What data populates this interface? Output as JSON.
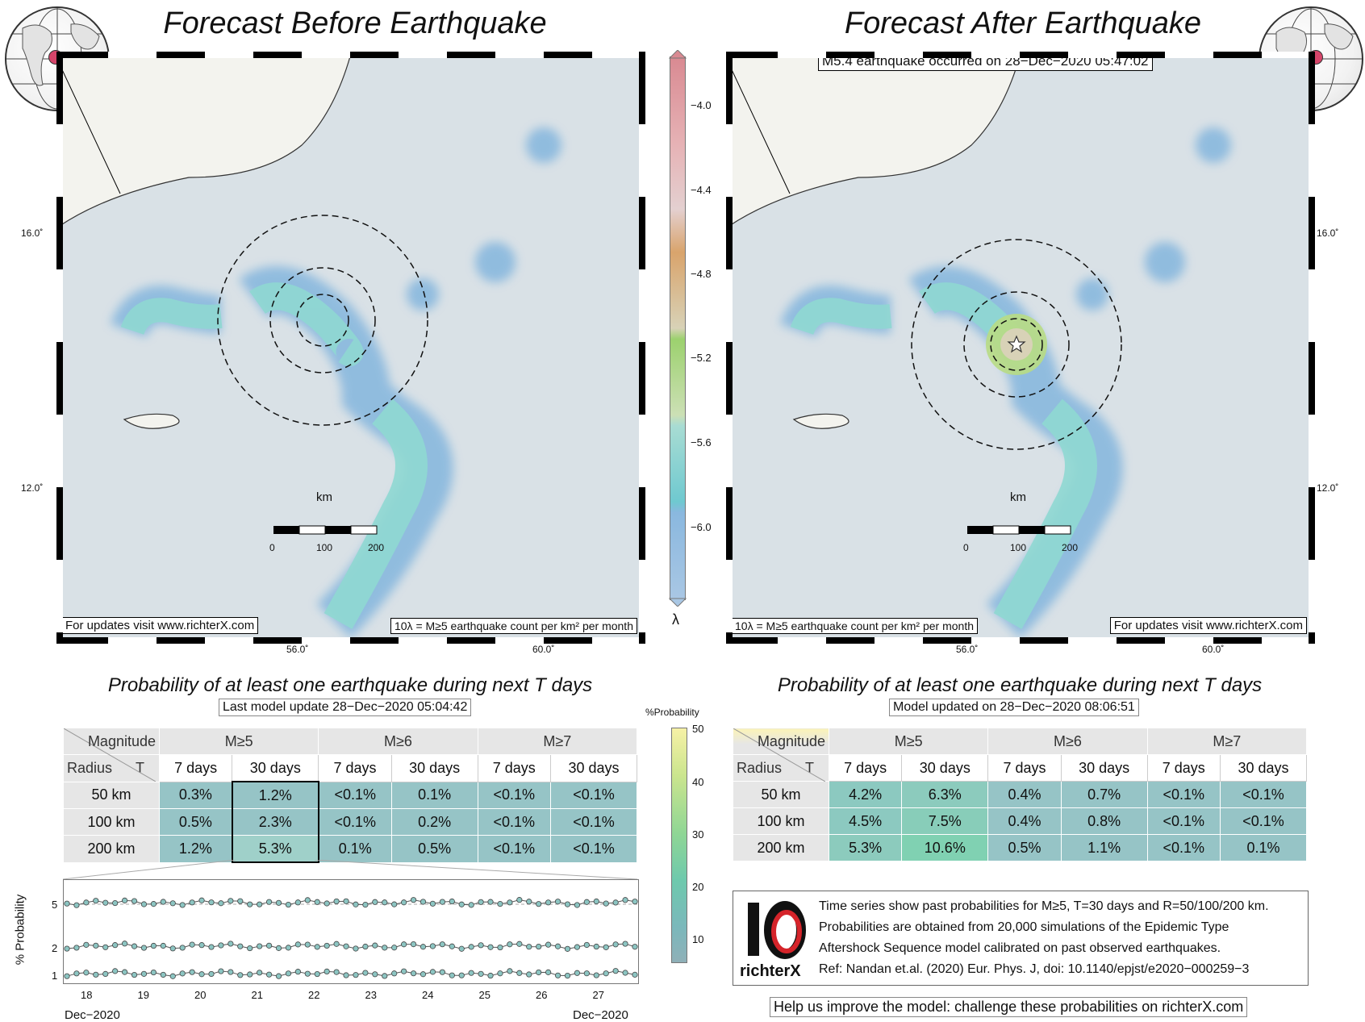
{
  "left": {
    "title": "Forecast Before Earthquake",
    "note_url": "For updates visit www.richterX.com",
    "note_unit": "10λ = M≥5 earthquake count per km² per month",
    "km_label": "km",
    "scale_ticks": [
      "0",
      "100",
      "200"
    ],
    "lat_ticks": [
      "16.0˚",
      "12.0˚"
    ],
    "lon_ticks": [
      "56.0˚",
      "60.0˚"
    ],
    "subtitle": "Probability of at least one earthquake during next T days",
    "update": "Last model update 28−Dec−2020 05:04:42",
    "table": {
      "magnitude_label": "Magnitude",
      "radius_label": "Radius",
      "t_label": "T",
      "mags": [
        "M≥5",
        "M≥6",
        "M≥7"
      ],
      "periods": [
        "7 days",
        "30 days",
        "7 days",
        "30 days",
        "7 days",
        "30 days"
      ],
      "rows": [
        {
          "radius": "50 km",
          "values": [
            "0.3%",
            "1.2%",
            "<0.1%",
            "0.1%",
            "<0.1%",
            "<0.1%"
          ]
        },
        {
          "radius": "100 km",
          "values": [
            "0.5%",
            "2.3%",
            "<0.1%",
            "0.2%",
            "<0.1%",
            "<0.1%"
          ]
        },
        {
          "radius": "200 km",
          "values": [
            "1.2%",
            "5.3%",
            "0.1%",
            "0.5%",
            "<0.1%",
            "<0.1%"
          ]
        }
      ]
    }
  },
  "right": {
    "title": "Forecast After Earthquake",
    "event": "M5.4 earthquake occurred on 28−Dec−2020 05:47:02",
    "note_url": "For updates visit www.richterX.com",
    "note_unit": "10λ = M≥5 earthquake count per km² per month",
    "km_label": "km",
    "scale_ticks": [
      "0",
      "100",
      "200"
    ],
    "lat_ticks": [
      "16.0˚",
      "12.0˚"
    ],
    "lon_ticks": [
      "56.0˚",
      "60.0˚"
    ],
    "subtitle": "Probability of at least one earthquake during next T days",
    "update": "Model updated on 28−Dec−2020 08:06:51",
    "table": {
      "magnitude_label": "Magnitude",
      "radius_label": "Radius",
      "t_label": "T",
      "mags": [
        "M≥5",
        "M≥6",
        "M≥7"
      ],
      "periods": [
        "7 days",
        "30 days",
        "7 days",
        "30 days",
        "7 days",
        "30 days"
      ],
      "rows": [
        {
          "radius": "50 km",
          "values": [
            "4.2%",
            "6.3%",
            "0.4%",
            "0.7%",
            "<0.1%",
            "<0.1%"
          ]
        },
        {
          "radius": "100 km",
          "values": [
            "4.5%",
            "7.5%",
            "0.4%",
            "0.8%",
            "<0.1%",
            "<0.1%"
          ]
        },
        {
          "radius": "200 km",
          "values": [
            "5.3%",
            "10.6%",
            "0.5%",
            "1.1%",
            "<0.1%",
            "0.1%"
          ]
        }
      ]
    }
  },
  "lambda_colorbar": {
    "ticks": [
      "−4.0",
      "−4.4",
      "−4.8",
      "−5.2",
      "−5.6",
      "−6.0"
    ],
    "symbol": "λ"
  },
  "prob_colorbar": {
    "label": "%Probability",
    "ticks": [
      "50",
      "40",
      "30",
      "20",
      "10"
    ]
  },
  "timeseries": {
    "ylabel": "% Probability",
    "yticks": [
      "5",
      "2",
      "1"
    ],
    "xticks": [
      "18",
      "19",
      "20",
      "21",
      "22",
      "23",
      "24",
      "25",
      "26",
      "27"
    ],
    "start": "Dec−2020",
    "end": "Dec−2020"
  },
  "info": {
    "lines": [
      "Time series show past probabilities for M≥5, T=30 days and R=50/100/200 km.",
      "Probabilities are obtained from 20,000 simulations of the Epidemic Type",
      "Aftershock Sequence model calibrated on past observed earthquakes.",
      "Ref: Nandan et.al. (2020) Eur. Phys. J, doi: 10.1140/epjst/e2020−000259−3"
    ],
    "logo_text": "richterX",
    "footer": "Help us improve the model: challenge these probabilities on richterX.com"
  }
}
